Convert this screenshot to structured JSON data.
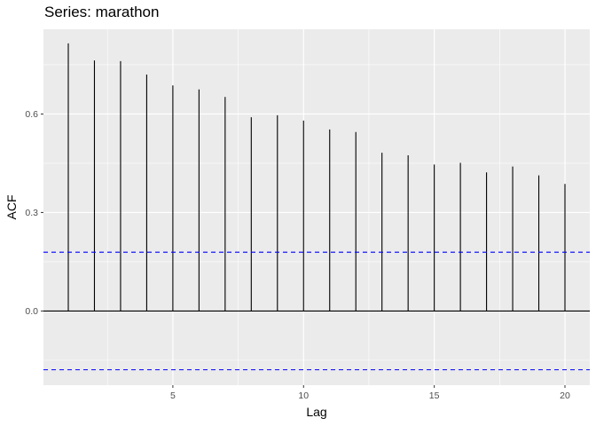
{
  "chart_data": {
    "type": "bar",
    "title": "Series: marathon",
    "xlabel": "Lag",
    "ylabel": "ACF",
    "x": [
      1,
      2,
      3,
      4,
      5,
      6,
      7,
      8,
      9,
      10,
      11,
      12,
      13,
      14,
      15,
      16,
      17,
      18,
      19,
      20
    ],
    "values": [
      0.815,
      0.763,
      0.761,
      0.72,
      0.687,
      0.675,
      0.652,
      0.59,
      0.596,
      0.58,
      0.553,
      0.545,
      0.482,
      0.474,
      0.446,
      0.451,
      0.422,
      0.44,
      0.413,
      0.387
    ],
    "xlim": [
      0.05,
      20.95
    ],
    "ylim": [
      -0.226,
      0.858
    ],
    "x_ticks": [
      5,
      10,
      15,
      20
    ],
    "x_tick_labels": [
      "5",
      "10",
      "15",
      "20"
    ],
    "y_ticks": [
      0,
      0.3,
      0.6
    ],
    "y_tick_labels": [
      "0.0",
      "0.3",
      "0.6"
    ],
    "confidence_bounds": [
      0.179,
      -0.179
    ],
    "grid": true,
    "colors": {
      "panel_background": "#ebebeb",
      "grid": "#ffffff",
      "bars": "#000000",
      "zero_line": "#000000",
      "confidence_line": "#0000ff"
    }
  }
}
